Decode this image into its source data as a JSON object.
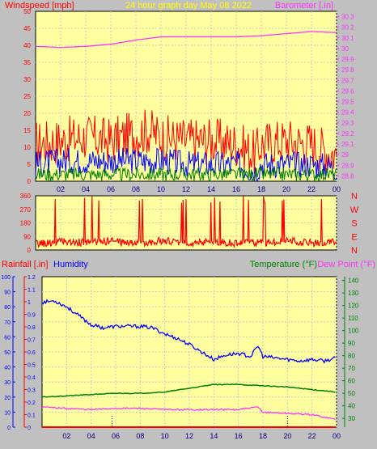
{
  "chart_data": [
    {
      "type": "line",
      "title": "24 hour graph day   May 08 2022",
      "left_label": "Windspeed [mph]",
      "right_label": "Barometer [.in]",
      "x_ticks": [
        "02",
        "04",
        "06",
        "08",
        "10",
        "12",
        "14",
        "16",
        "18",
        "20",
        "22",
        "00"
      ],
      "x_range_hours": [
        0,
        24
      ],
      "left_ticks": [
        "0",
        "5",
        "10",
        "15",
        "20",
        "25",
        "30",
        "35",
        "40",
        "45",
        "50"
      ],
      "left_range": [
        0,
        50
      ],
      "right_ticks": [
        "28.8",
        "28.9",
        "29",
        "29.1",
        "29.2",
        "29.3",
        "29.4",
        "29.5",
        "29.6",
        "29.7",
        "29.8",
        "29.9",
        "30",
        "30.1",
        "30.2",
        "30.3"
      ],
      "right_range": [
        28.75,
        30.35
      ],
      "series": [
        {
          "role": "barometer",
          "color": "#ff33ff",
          "axis": "right",
          "x": [
            0,
            2,
            4,
            6,
            8,
            10,
            12,
            14,
            16,
            18,
            20,
            22,
            24
          ],
          "values": [
            30.02,
            30.01,
            30.02,
            30.04,
            30.08,
            30.11,
            30.11,
            30.11,
            30.11,
            30.12,
            30.14,
            30.16,
            30.15
          ]
        },
        {
          "role": "gust",
          "color": "#ff0000",
          "axis": "left",
          "x": [
            0,
            2,
            4,
            6,
            8,
            9,
            10,
            12,
            14,
            16,
            17.5,
            18,
            20,
            22,
            24
          ],
          "values": [
            11,
            12,
            13,
            12,
            14,
            15,
            13,
            12,
            12,
            11,
            8,
            11,
            12,
            11,
            8
          ]
        },
        {
          "role": "wind_avg",
          "color": "#0000ff",
          "axis": "left",
          "x": [
            0,
            2,
            4,
            6,
            8,
            10,
            12,
            14,
            16,
            17.5,
            18,
            20,
            22,
            24
          ],
          "values": [
            5,
            6,
            6,
            6,
            6,
            6,
            5,
            5,
            5,
            3,
            5,
            5,
            5,
            4
          ]
        },
        {
          "role": "wind_min",
          "color": "#008000",
          "axis": "left",
          "x": [
            0,
            4,
            8,
            12,
            16,
            20,
            24
          ],
          "values": [
            2,
            2,
            2,
            2,
            2,
            2,
            2
          ]
        }
      ],
      "grid": true
    },
    {
      "type": "line",
      "title": "",
      "x_ticks": [],
      "left_ticks": [
        "0",
        "90",
        "180",
        "270",
        "360"
      ],
      "left_range": [
        0,
        360
      ],
      "right_ticks": [
        "N",
        "W",
        "S",
        "E",
        "N"
      ],
      "series": [
        {
          "role": "wind_direction",
          "color": "#ff0000",
          "x": [
            0,
            2,
            4,
            6,
            8,
            10,
            12,
            14,
            16,
            18,
            20,
            22,
            24
          ],
          "values": [
            40,
            55,
            50,
            60,
            45,
            60,
            50,
            55,
            45,
            50,
            60,
            45,
            50
          ]
        }
      ],
      "grid": true
    },
    {
      "type": "line",
      "title": "",
      "rainfall_label": "Rainfall [.in]",
      "humidity_label": "Humidity",
      "temperature_label": "Temperature (°F)",
      "dewpoint_label": "Dew Point (°F)",
      "x_ticks": [
        "02",
        "04",
        "06",
        "08",
        "10",
        "12",
        "14",
        "16",
        "18",
        "20",
        "22",
        "00"
      ],
      "humidity_ticks": [
        "0",
        "10",
        "20",
        "30",
        "40",
        "50",
        "60",
        "70",
        "80",
        "90",
        "100"
      ],
      "humidity_range": [
        0,
        100
      ],
      "rain_ticks": [
        "0",
        "0.1",
        "0.2",
        "0.3",
        "0.4",
        "0.5",
        "0.6",
        "0.7",
        "0.8",
        "0.9",
        "1",
        "1.1",
        "1.2"
      ],
      "rain_range": [
        0,
        1.2
      ],
      "temp_ticks": [
        "30",
        "40",
        "50",
        "60",
        "70",
        "80",
        "90",
        "100",
        "110",
        "120",
        "130",
        "140"
      ],
      "temp_range": [
        23,
        143
      ],
      "series": [
        {
          "role": "humidity",
          "color": "#0000ff",
          "x": [
            0,
            1,
            2,
            3,
            4,
            5,
            6,
            7,
            8,
            9,
            10,
            11,
            12,
            13,
            14,
            15,
            16,
            17,
            17.6,
            18,
            19,
            20,
            21,
            22,
            23,
            24
          ],
          "values": [
            83,
            84,
            80,
            74,
            68,
            66,
            67,
            67,
            67,
            66,
            62,
            59,
            55,
            50,
            45,
            48,
            49,
            47,
            54,
            47,
            46,
            45,
            44,
            45,
            44,
            46
          ]
        },
        {
          "role": "temperature",
          "color": "#008000",
          "x": [
            0,
            2,
            4,
            6,
            8,
            10,
            12,
            14,
            16,
            18,
            20,
            22,
            24
          ],
          "values": [
            47,
            48,
            49,
            50,
            50,
            51,
            54,
            57,
            57,
            56,
            55,
            53,
            51
          ]
        },
        {
          "role": "dew_point",
          "color": "#ff33ff",
          "x": [
            0,
            2,
            4,
            6,
            8,
            10,
            12,
            14,
            16,
            17.6,
            18,
            20,
            22,
            23.5,
            24
          ],
          "values": [
            39,
            38,
            37,
            38,
            38,
            37,
            37,
            37,
            37,
            39,
            35,
            34,
            33,
            30,
            29
          ]
        },
        {
          "role": "rainfall",
          "color": "#ff0000",
          "x": [
            0,
            24
          ],
          "values": [
            0,
            0
          ]
        }
      ],
      "grid": true
    }
  ]
}
